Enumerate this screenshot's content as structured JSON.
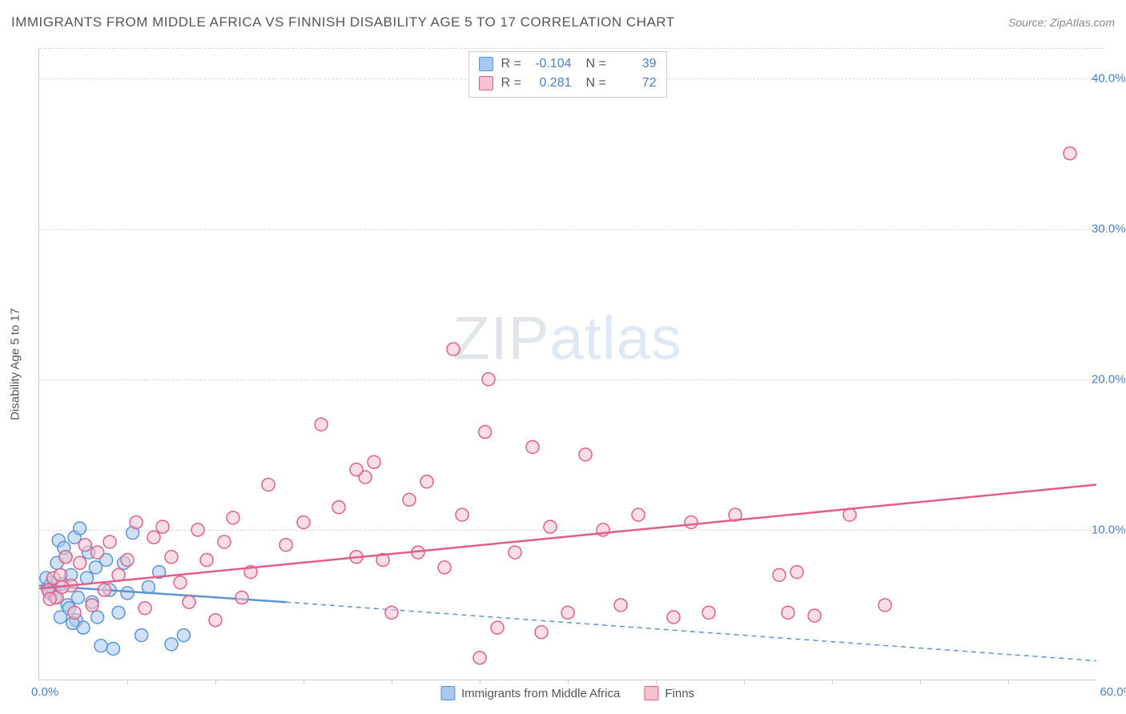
{
  "title": "IMMIGRANTS FROM MIDDLE AFRICA VS FINNISH DISABILITY AGE 5 TO 17 CORRELATION CHART",
  "source": "Source: ZipAtlas.com",
  "watermark_zip": "ZIP",
  "watermark_atlas": "atlas",
  "y_axis_label": "Disability Age 5 to 17",
  "x_origin": "0.0%",
  "x_max": "60.0%",
  "chart": {
    "type": "scatter",
    "xlim": [
      0,
      60
    ],
    "ylim": [
      0,
      42
    ],
    "y_ticks": [
      10,
      20,
      30,
      40
    ],
    "y_tick_labels": [
      "10.0%",
      "20.0%",
      "30.0%",
      "40.0%"
    ],
    "x_ticks": [
      5,
      10,
      15,
      20,
      25,
      30,
      35,
      40,
      45,
      50,
      55
    ],
    "background_color": "#ffffff",
    "grid_color": "#d8d8d8",
    "marker_radius": 8,
    "marker_opacity": 0.55,
    "line_width_solid": 2.5,
    "series": [
      {
        "name": "Immigrants from Middle Africa",
        "color_fill": "#a8c9ee",
        "color_stroke": "#5b94d6",
        "R": "-0.104",
        "N": "39",
        "trend_solid": {
          "x1": 0,
          "y1": 6.3,
          "x2": 14,
          "y2": 5.2
        },
        "trend_dash": {
          "x1": 14,
          "y1": 5.2,
          "x2": 60,
          "y2": 1.3
        },
        "points": [
          [
            0.5,
            6.2
          ],
          [
            0.6,
            5.8
          ],
          [
            0.7,
            6.5
          ],
          [
            0.8,
            6.0
          ],
          [
            0.9,
            5.5
          ],
          [
            1.0,
            7.8
          ],
          [
            1.1,
            9.3
          ],
          [
            1.2,
            4.2
          ],
          [
            1.3,
            6.4
          ],
          [
            1.5,
            8.2
          ],
          [
            1.6,
            5.0
          ],
          [
            1.8,
            7.0
          ],
          [
            2.0,
            9.5
          ],
          [
            2.1,
            4.0
          ],
          [
            2.3,
            10.1
          ],
          [
            2.5,
            3.5
          ],
          [
            2.7,
            6.8
          ],
          [
            3.0,
            5.2
          ],
          [
            3.2,
            7.5
          ],
          [
            3.5,
            2.3
          ],
          [
            3.8,
            8.0
          ],
          [
            4.0,
            6.0
          ],
          [
            4.2,
            2.1
          ],
          [
            4.5,
            4.5
          ],
          [
            5.0,
            5.8
          ],
          [
            5.3,
            9.8
          ],
          [
            5.8,
            3.0
          ],
          [
            6.2,
            6.2
          ],
          [
            6.8,
            7.2
          ],
          [
            7.5,
            2.4
          ],
          [
            8.2,
            3.0
          ],
          [
            1.4,
            8.8
          ],
          [
            1.7,
            4.8
          ],
          [
            2.2,
            5.5
          ],
          [
            2.8,
            8.5
          ],
          [
            4.8,
            7.8
          ],
          [
            0.4,
            6.8
          ],
          [
            1.9,
            3.8
          ],
          [
            3.3,
            4.2
          ]
        ]
      },
      {
        "name": "Finns",
        "color_fill": "#f6c2d0",
        "color_stroke": "#e05f88",
        "R": "0.281",
        "N": "72",
        "trend_solid": {
          "x1": 0,
          "y1": 6.1,
          "x2": 60,
          "y2": 13.0
        },
        "points": [
          [
            0.5,
            6.0
          ],
          [
            0.8,
            6.8
          ],
          [
            1.0,
            5.5
          ],
          [
            1.2,
            7.0
          ],
          [
            1.5,
            8.2
          ],
          [
            1.8,
            6.3
          ],
          [
            2.0,
            4.5
          ],
          [
            2.3,
            7.8
          ],
          [
            2.6,
            9.0
          ],
          [
            3.0,
            5.0
          ],
          [
            3.3,
            8.5
          ],
          [
            3.7,
            6.0
          ],
          [
            4.0,
            9.2
          ],
          [
            4.5,
            7.0
          ],
          [
            5.0,
            8.0
          ],
          [
            5.5,
            10.5
          ],
          [
            6.0,
            4.8
          ],
          [
            6.5,
            9.5
          ],
          [
            7.0,
            10.2
          ],
          [
            7.5,
            8.2
          ],
          [
            8.0,
            6.5
          ],
          [
            8.5,
            5.2
          ],
          [
            9.0,
            10.0
          ],
          [
            9.5,
            8.0
          ],
          [
            10.0,
            4.0
          ],
          [
            10.5,
            9.2
          ],
          [
            11.0,
            10.8
          ],
          [
            11.5,
            5.5
          ],
          [
            12.0,
            7.2
          ],
          [
            13.0,
            13.0
          ],
          [
            14.0,
            9.0
          ],
          [
            15.0,
            10.5
          ],
          [
            16.0,
            17.0
          ],
          [
            17.0,
            11.5
          ],
          [
            18.0,
            8.2
          ],
          [
            18.5,
            13.5
          ],
          [
            19.0,
            14.5
          ],
          [
            19.5,
            8.0
          ],
          [
            20.0,
            4.5
          ],
          [
            21.0,
            12.0
          ],
          [
            21.5,
            8.5
          ],
          [
            22.0,
            13.2
          ],
          [
            23.0,
            7.5
          ],
          [
            23.5,
            22.0
          ],
          [
            24.0,
            11.0
          ],
          [
            25.0,
            1.5
          ],
          [
            25.5,
            20.0
          ],
          [
            26.0,
            3.5
          ],
          [
            25.3,
            16.5
          ],
          [
            27.0,
            8.5
          ],
          [
            28.0,
            15.5
          ],
          [
            28.5,
            3.2
          ],
          [
            29.0,
            10.2
          ],
          [
            30.0,
            4.5
          ],
          [
            31.0,
            15.0
          ],
          [
            32.0,
            10.0
          ],
          [
            33.0,
            5.0
          ],
          [
            34.0,
            11.0
          ],
          [
            36.0,
            4.2
          ],
          [
            37.0,
            10.5
          ],
          [
            38.0,
            4.5
          ],
          [
            39.5,
            11.0
          ],
          [
            42.0,
            7.0
          ],
          [
            42.5,
            4.5
          ],
          [
            43.0,
            7.2
          ],
          [
            44.0,
            4.3
          ],
          [
            46.0,
            11.0
          ],
          [
            48.0,
            5.0
          ],
          [
            0.6,
            5.4
          ],
          [
            1.3,
            6.2
          ],
          [
            58.5,
            35.0
          ],
          [
            18.0,
            14.0
          ]
        ]
      }
    ]
  },
  "legend": {
    "items": [
      {
        "label": "Immigrants from Middle Africa",
        "fill": "#a8c9ee",
        "stroke": "#5b94d6"
      },
      {
        "label": "Finns",
        "fill": "#f6c2d0",
        "stroke": "#e05f88"
      }
    ]
  }
}
